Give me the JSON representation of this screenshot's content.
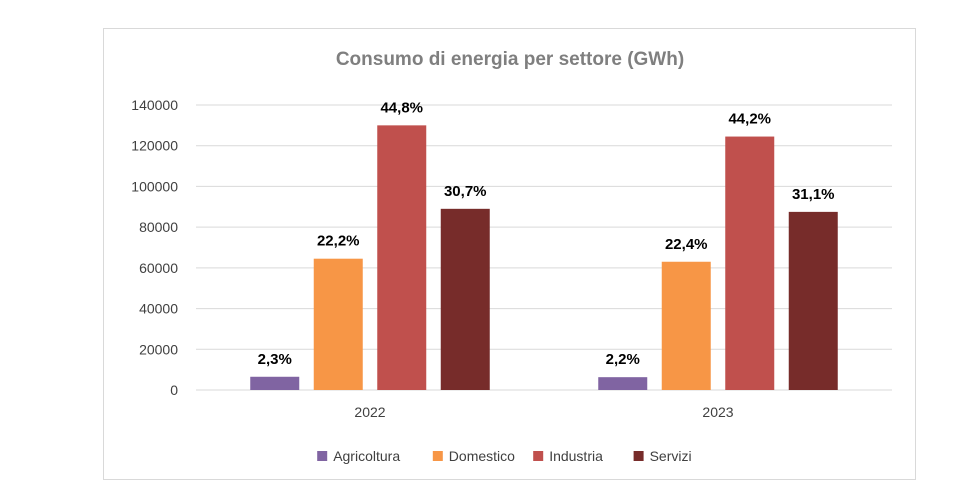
{
  "chart_data": {
    "type": "bar",
    "title": "Consumo di energia per settore (GWh)",
    "xlabel": "",
    "ylabel": "",
    "categories": [
      "2022",
      "2023"
    ],
    "ylim": [
      0,
      140000
    ],
    "yticks": [
      0,
      20000,
      40000,
      60000,
      80000,
      100000,
      120000,
      140000
    ],
    "grid": true,
    "legend_position": "bottom",
    "series": [
      {
        "name": "Agricoltura",
        "color": "#8064a2",
        "values": [
          6500,
          6300
        ],
        "labels": [
          "2,3%",
          "2,2%"
        ]
      },
      {
        "name": "Domestico",
        "color": "#f79646",
        "values": [
          64500,
          63000
        ],
        "labels": [
          "22,2%",
          "22,4%"
        ]
      },
      {
        "name": "Industria",
        "color": "#c0504d",
        "values": [
          130000,
          124500
        ],
        "labels": [
          "44,8%",
          "44,2%"
        ]
      },
      {
        "name": "Servizi",
        "color": "#772c2a",
        "values": [
          89000,
          87500
        ],
        "labels": [
          "30,7%",
          "31,1%"
        ]
      }
    ]
  }
}
